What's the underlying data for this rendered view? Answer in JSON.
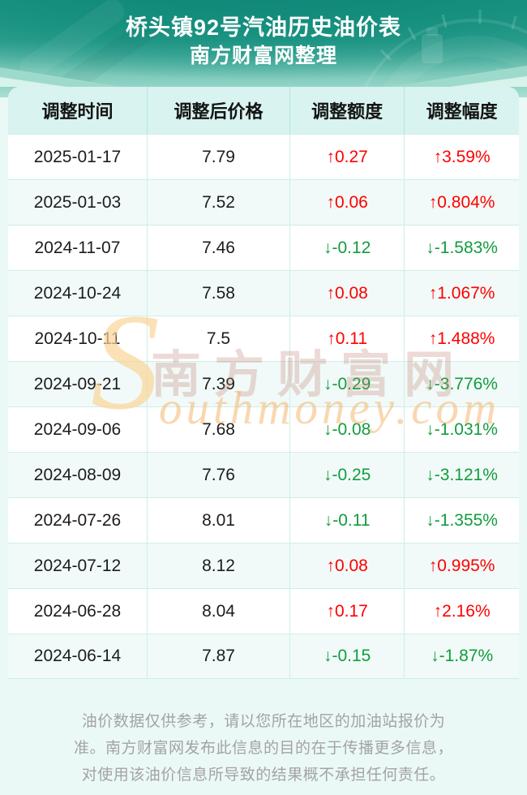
{
  "page": {
    "header": {
      "title": "桥头镇92号汽油历史油价表",
      "subtitle": "南方财富网整理"
    },
    "table": {
      "columns": [
        "调整时间",
        "调整后价格",
        "调整额度",
        "调整幅度"
      ],
      "rows": [
        {
          "date": "2025-01-17",
          "price": "7.79",
          "change": "↑0.27",
          "pct": "↑3.59%",
          "direction": "up"
        },
        {
          "date": "2025-01-03",
          "price": "7.52",
          "change": "↑0.06",
          "pct": "↑0.804%",
          "direction": "up"
        },
        {
          "date": "2024-11-07",
          "price": "7.46",
          "change": "↓-0.12",
          "pct": "↓-1.583%",
          "direction": "down"
        },
        {
          "date": "2024-10-24",
          "price": "7.58",
          "change": "↑0.08",
          "pct": "↑1.067%",
          "direction": "up"
        },
        {
          "date": "2024-10-11",
          "price": "7.5",
          "change": "↑0.11",
          "pct": "↑1.488%",
          "direction": "up"
        },
        {
          "date": "2024-09-21",
          "price": "7.39",
          "change": "↓-0.29",
          "pct": "↓-3.776%",
          "direction": "down"
        },
        {
          "date": "2024-09-06",
          "price": "7.68",
          "change": "↓-0.08",
          "pct": "↓-1.031%",
          "direction": "down"
        },
        {
          "date": "2024-08-09",
          "price": "7.76",
          "change": "↓-0.25",
          "pct": "↓-3.121%",
          "direction": "down"
        },
        {
          "date": "2024-07-26",
          "price": "8.01",
          "change": "↓-0.11",
          "pct": "↓-1.355%",
          "direction": "down"
        },
        {
          "date": "2024-07-12",
          "price": "8.12",
          "change": "↑0.08",
          "pct": "↑0.995%",
          "direction": "up"
        },
        {
          "date": "2024-06-28",
          "price": "8.04",
          "change": "↑0.17",
          "pct": "↑2.16%",
          "direction": "up"
        },
        {
          "date": "2024-06-14",
          "price": "7.87",
          "change": "↓-0.15",
          "pct": "↓-1.87%",
          "direction": "down"
        }
      ]
    },
    "watermark": {
      "initial": "S",
      "cn": "南方财富网",
      "en": "outhmoney.com"
    },
    "footer": {
      "lines": [
        "油价数据仅供参考，请以您所在地区的加油站报价为",
        "准。南方财富网发布此信息的目的在于传播更多信息，",
        "对使用该油价信息所导致的结果概不承担任何责任。"
      ]
    },
    "colors": {
      "up_red": "#ff0000",
      "down_green": "#129c3e",
      "table_header_bg": "#d8f3f0",
      "row_alt_bg": "#f1faf8",
      "page_bg": "#ebf9f6",
      "border": "#cdeee8",
      "footer_text": "#a3a3a3",
      "hero_teal_dark": "#0e857a",
      "hero_teal_light": "#aadfd2",
      "watermark_orange": "#f4b670",
      "watermark_pink": "#c58377"
    }
  }
}
